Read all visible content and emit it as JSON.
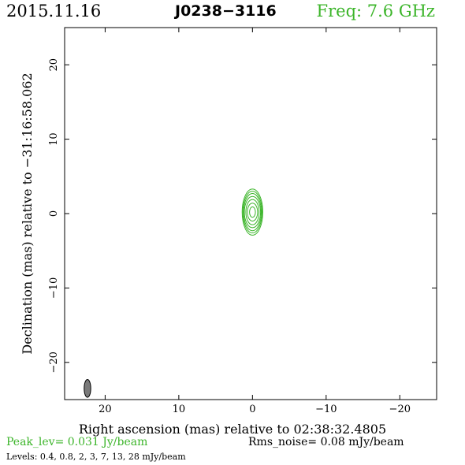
{
  "header": {
    "date": "2015.11.16",
    "source": "J0238−3116",
    "freq": "Freq: 7.6 GHz"
  },
  "footer": {
    "peak": "Peak_lev=  0.031 Jy/beam",
    "rms": "Rms_noise= 0.08 mJy/beam",
    "levels": "Levels: 0.4, 0.8,   2,   3,   7,  13,  28 mJy/beam"
  },
  "colors": {
    "contour": "#3cb52a",
    "beam_fill": "#7a7a7a",
    "frame": "#000000"
  },
  "chart_data": {
    "type": "contour",
    "title": "J0238−3116",
    "xlabel": "Right ascension (mas) relative to 02:38:32.4805",
    "ylabel": "Declination (mas) relative to −31:16:58.062",
    "xlim": [
      25.5,
      -25
    ],
    "ylim": [
      -25,
      25
    ],
    "xticks": [
      20,
      10,
      0,
      -10,
      -20
    ],
    "yticks": [
      -20,
      -10,
      0,
      10,
      20
    ],
    "xticklabels": [
      "20",
      "10",
      "0",
      "−10",
      "−20"
    ],
    "yticklabels": [
      "−20",
      "−10",
      "0",
      "10",
      "20"
    ],
    "center": [
      0,
      0.2
    ],
    "contour_levels_mJy": [
      0.4,
      0.8,
      2,
      3,
      7,
      13,
      28
    ],
    "contour_semi_axes_mas": [
      [
        1.4,
        3.1
      ],
      [
        1.3,
        2.8
      ],
      [
        1.2,
        2.5
      ],
      [
        1.1,
        2.1
      ],
      [
        0.9,
        1.7
      ],
      [
        0.7,
        1.2
      ],
      [
        0.4,
        0.7
      ]
    ],
    "beam": {
      "x": 22.4,
      "y": -23.5,
      "major_mas": 2.4,
      "minor_mas": 0.9,
      "pa_deg": 0
    }
  }
}
